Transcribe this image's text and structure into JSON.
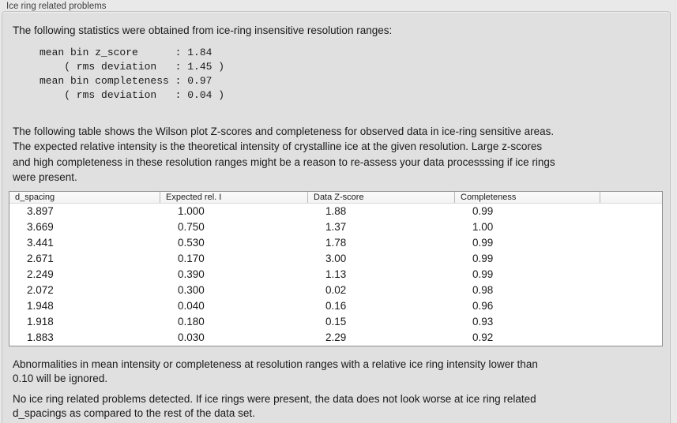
{
  "panel": {
    "title": "Ice ring related problems",
    "intro": "The following statistics were obtained from ice-ring insensitive resolution ranges:",
    "stats_block": "mean bin z_score      : 1.84\n    ( rms deviation   : 1.45 )\nmean bin completeness : 0.97\n    ( rms deviation   : 0.04 )",
    "stats": {
      "mean_bin_z_score": "1.84",
      "z_score_rms_deviation": "1.45",
      "mean_bin_completeness": "0.97",
      "completeness_rms_deviation": "0.04"
    },
    "table_description": "The following table shows the Wilson plot Z-scores and completeness for observed data in ice-ring sensitive areas.\nThe expected relative intensity is the theoretical intensity of crystalline ice at the given resolution. Large z-scores\nand high completeness in these resolution ranges might be a reason to re-assess your data processsing if ice rings\nwere present.",
    "ignore_note": "Abnormalities in mean intensity or completeness at resolution ranges with a relative ice ring intensity lower than\n0.10 will be ignored.",
    "conclusion": "No ice ring related problems detected. If ice rings were present, the data does not look worse at ice ring related\nd_spacings as compared to the rest of the data set."
  },
  "table": {
    "columns": [
      "d_spacing",
      "Expected rel. I",
      "Data Z-score",
      "Completeness"
    ],
    "rows": [
      [
        "3.897",
        "1.000",
        "1.88",
        "0.99"
      ],
      [
        "3.669",
        "0.750",
        "1.37",
        "1.00"
      ],
      [
        "3.441",
        "0.530",
        "1.78",
        "0.99"
      ],
      [
        "2.671",
        "0.170",
        "3.00",
        "0.99"
      ],
      [
        "2.249",
        "0.390",
        "1.13",
        "0.99"
      ],
      [
        "2.072",
        "0.300",
        "0.02",
        "0.98"
      ],
      [
        "1.948",
        "0.040",
        "0.16",
        "0.96"
      ],
      [
        "1.918",
        "0.180",
        "0.15",
        "0.93"
      ],
      [
        "1.883",
        "0.030",
        "2.29",
        "0.92"
      ]
    ]
  },
  "colors": {
    "background": "#e9e9e9",
    "panel_background": "#e0e0e0",
    "panel_border": "#c3c3c3",
    "table_background": "#ffffff",
    "table_border": "#8e8e8e",
    "header_background": "#f3f3f3",
    "header_separator": "#b9b9b9",
    "text": "#1a1a1a",
    "label_text": "#3e3e3e"
  }
}
